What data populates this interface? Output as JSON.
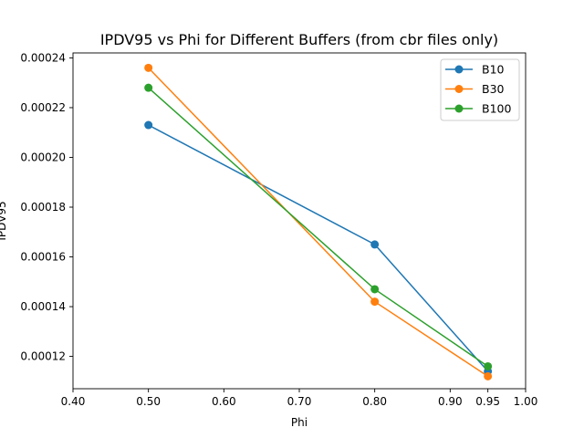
{
  "chart_data": {
    "type": "line",
    "title": "IPDV95 vs Phi for Different Buffers (from cbr files only)",
    "xlabel": "Phi",
    "ylabel": "IPDV95",
    "x": [
      0.5,
      0.8,
      0.95
    ],
    "xlim": [
      0.4,
      1.0
    ],
    "ylim": [
      0.000107,
      0.000242
    ],
    "xticks": [
      0.4,
      0.5,
      0.6,
      0.7,
      0.8,
      0.9,
      0.95,
      1.0
    ],
    "xtick_labels": [
      "0.40",
      "0.50",
      "0.60",
      "0.70",
      "0.80",
      "0.90",
      "0.95",
      "1.00"
    ],
    "yticks": [
      0.00012,
      0.00014,
      0.00016,
      0.00018,
      0.0002,
      0.00022,
      0.00024
    ],
    "ytick_labels": [
      "0.00012",
      "0.00014",
      "0.00016",
      "0.00018",
      "0.00020",
      "0.00022",
      "0.00024"
    ],
    "grid": false,
    "legend_position": "top-right",
    "series": [
      {
        "name": "B10",
        "color": "#1f77b4",
        "values": [
          0.000213,
          0.000165,
          0.000114
        ]
      },
      {
        "name": "B30",
        "color": "#ff7f0e",
        "values": [
          0.000236,
          0.000142,
          0.000112
        ]
      },
      {
        "name": "B100",
        "color": "#2ca02c",
        "values": [
          0.000228,
          0.000147,
          0.000116
        ]
      }
    ]
  }
}
